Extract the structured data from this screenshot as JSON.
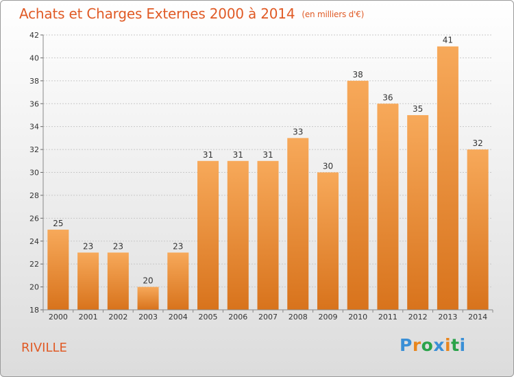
{
  "title": "Achats et Charges Externes 2000 à 2014",
  "unit": "(en milliers d'€)",
  "town": "RIVILLE",
  "logo": {
    "text": "Proxiti",
    "colors": [
      "#3a8fd6",
      "#e8861f",
      "#2aa34a",
      "#3a8fd6",
      "#e8861f",
      "#2aa34a",
      "#3a8fd6"
    ]
  },
  "colors": {
    "bar_top": "#f7a95a",
    "bar_bottom": "#d8731c",
    "accent": "#e05a25"
  },
  "chart_data": {
    "type": "bar",
    "categories": [
      "2000",
      "2001",
      "2002",
      "2003",
      "2004",
      "2005",
      "2006",
      "2007",
      "2008",
      "2009",
      "2010",
      "2011",
      "2012",
      "2013",
      "2014"
    ],
    "values": [
      25,
      23,
      23,
      20,
      23,
      31,
      31,
      31,
      33,
      30,
      38,
      36,
      35,
      41,
      32
    ],
    "ylim": [
      18,
      42
    ],
    "yticks": [
      18,
      20,
      22,
      24,
      26,
      28,
      30,
      32,
      34,
      36,
      38,
      40,
      42
    ],
    "grid": true,
    "title": "Achats et Charges Externes 2000 à 2014",
    "xlabel": "",
    "ylabel": ""
  }
}
